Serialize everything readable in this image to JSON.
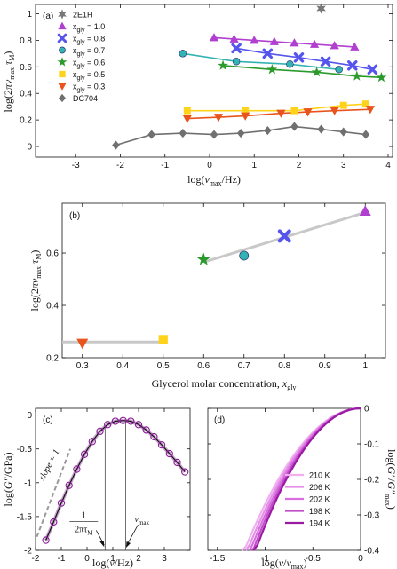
{
  "chart_data": [
    {
      "panel": "(a)",
      "type": "scatter",
      "xlabel": "log(ν_max/Hz)",
      "ylabel": "log(2πν_max τ_M)",
      "xlim": [
        -3.9,
        4.1
      ],
      "ylim": [
        -0.08,
        1.07
      ],
      "xticks": [
        -3,
        -2,
        -1,
        0,
        1,
        2,
        3,
        4
      ],
      "yticks": [
        0,
        0.2,
        0.4,
        0.6,
        0.8,
        1
      ],
      "legend_position": "top-left",
      "series": [
        {
          "name": "2E1H",
          "color": "#777777",
          "marker": "star6",
          "line": false,
          "x": [
            2.5
          ],
          "y": [
            1.04
          ]
        },
        {
          "name": "x_gly = 1.0",
          "color": "#b13fd0",
          "marker": "triangle-up",
          "x": [
            0.1,
            0.55,
            1.0,
            1.45,
            1.9,
            2.35,
            2.8,
            3.25
          ],
          "y": [
            0.82,
            0.81,
            0.8,
            0.79,
            0.78,
            0.77,
            0.76,
            0.75
          ]
        },
        {
          "name": "x_gly = 0.8",
          "color": "#5555ee",
          "marker": "x-fat",
          "x": [
            0.6,
            1.3,
            2.0,
            2.6,
            3.2,
            3.65
          ],
          "y": [
            0.74,
            0.7,
            0.67,
            0.64,
            0.61,
            0.58
          ]
        },
        {
          "name": "x_gly = 0.7",
          "color": "#33b3b3",
          "marker": "circle",
          "x": [
            -0.6,
            0.6,
            1.8,
            2.9
          ],
          "y": [
            0.7,
            0.64,
            0.62,
            0.58
          ]
        },
        {
          "name": "x_gly = 0.6",
          "color": "#2a9a2a",
          "marker": "star5",
          "x": [
            0.3,
            1.4,
            2.4,
            3.3,
            3.85
          ],
          "y": [
            0.61,
            0.58,
            0.56,
            0.53,
            0.52
          ]
        },
        {
          "name": "x_gly = 0.5",
          "color": "#ffd21c",
          "marker": "square",
          "x": [
            -0.5,
            0.8,
            1.9,
            3.0,
            3.5
          ],
          "y": [
            0.27,
            0.27,
            0.27,
            0.31,
            0.32
          ]
        },
        {
          "name": "x_gly = 0.3",
          "color": "#e8541c",
          "marker": "triangle-down",
          "x": [
            -0.5,
            0.2,
            0.8,
            1.6,
            2.2,
            2.8,
            3.6
          ],
          "y": [
            0.21,
            0.22,
            0.23,
            0.25,
            0.26,
            0.27,
            0.28
          ]
        },
        {
          "name": "DC704",
          "color": "#707070",
          "marker": "diamond",
          "x": [
            -2.1,
            -1.3,
            -0.6,
            0.1,
            0.7,
            1.3,
            1.9,
            2.5,
            3.0,
            3.5
          ],
          "y": [
            0.01,
            0.09,
            0.1,
            0.09,
            0.1,
            0.12,
            0.15,
            0.13,
            0.11,
            0.09
          ]
        }
      ]
    },
    {
      "panel": "(b)",
      "type": "scatter",
      "xlabel": "Glycerol molar concentration, x_gly",
      "ylabel": "log(2πν_max τ_M)",
      "xlim": [
        0.25,
        1.05
      ],
      "ylim": [
        0.2,
        0.79
      ],
      "xticks": [
        0.3,
        0.4,
        0.5,
        0.6,
        0.7,
        0.8,
        0.9,
        1
      ],
      "yticks": [
        0.2,
        0.4,
        0.6
      ],
      "points": [
        {
          "x": 0.3,
          "y": 0.255,
          "marker": "triangle-down",
          "color": "#e8541c"
        },
        {
          "x": 0.5,
          "y": 0.27,
          "marker": "square",
          "color": "#ffd21c"
        },
        {
          "x": 0.6,
          "y": 0.575,
          "marker": "star5",
          "color": "#2a9a2a"
        },
        {
          "x": 0.7,
          "y": 0.59,
          "marker": "circle",
          "color": "#33b3b3"
        },
        {
          "x": 0.8,
          "y": 0.665,
          "marker": "x-fat",
          "color": "#5555ee"
        },
        {
          "x": 1.0,
          "y": 0.76,
          "marker": "triangle-up",
          "color": "#b13fd0"
        }
      ],
      "fit_lines": [
        {
          "x": [
            0.25,
            0.5
          ],
          "y": [
            0.26,
            0.26
          ]
        },
        {
          "x": [
            0.6,
            1.0
          ],
          "y": [
            0.565,
            0.755
          ]
        }
      ]
    },
    {
      "panel": "(c)",
      "type": "line",
      "xlabel": "log(ν/Hz)",
      "ylabel": "log(G''/GPa)",
      "xlim": [
        -2,
        4
      ],
      "ylim": [
        -2,
        0.1
      ],
      "xticks": [
        -2,
        -1,
        0,
        1,
        2,
        3
      ],
      "yticks": [
        -2,
        -1.5,
        -1,
        -0.5,
        0
      ],
      "peak": {
        "x": 1.5,
        "y": -0.08
      },
      "slope_label": "slope = 1",
      "annotation_tau": {
        "numerator": "1",
        "denominator": "2πτ_M",
        "x": 0.7
      },
      "annotation_numax": {
        "label": "ν_max",
        "x": 1.5
      },
      "data_x": [
        -1.6,
        -1.3,
        -1.0,
        -0.7,
        -0.4,
        -0.1,
        0.2,
        0.5,
        0.8,
        1.1,
        1.4,
        1.7,
        2.0,
        2.3,
        2.6,
        2.9,
        3.2,
        3.5,
        3.8
      ],
      "data_y": [
        -1.85,
        -1.58,
        -1.3,
        -1.04,
        -0.8,
        -0.58,
        -0.39,
        -0.24,
        -0.14,
        -0.09,
        -0.08,
        -0.09,
        -0.14,
        -0.22,
        -0.32,
        -0.44,
        -0.57,
        -0.7,
        -0.84
      ]
    },
    {
      "panel": "(d)",
      "type": "line",
      "xlabel": "log(ν/ν_max)",
      "ylabel": "log(G''/G''_max)",
      "xlim": [
        -1.6,
        0
      ],
      "ylim": [
        -0.4,
        0
      ],
      "xticks": [
        -1.5,
        -1,
        -0.5,
        0
      ],
      "yticks": [
        0,
        -0.1,
        -0.2,
        -0.3,
        -0.4
      ],
      "legend_position": "lower-right",
      "series": [
        {
          "name": "210 K",
          "color": "#f0b0f0",
          "k": 0.54
        },
        {
          "name": "206 K",
          "color": "#e590e8",
          "k": 0.57
        },
        {
          "name": "202 K",
          "color": "#d86ee0",
          "k": 0.6
        },
        {
          "name": "198 K",
          "color": "#c04cc8",
          "k": 0.63
        },
        {
          "name": "194 K",
          "color": "#9a1aa4",
          "k": 0.66
        }
      ]
    }
  ],
  "colors": {
    "fit_gray": "#c8c8c8",
    "axis": "#111111"
  }
}
